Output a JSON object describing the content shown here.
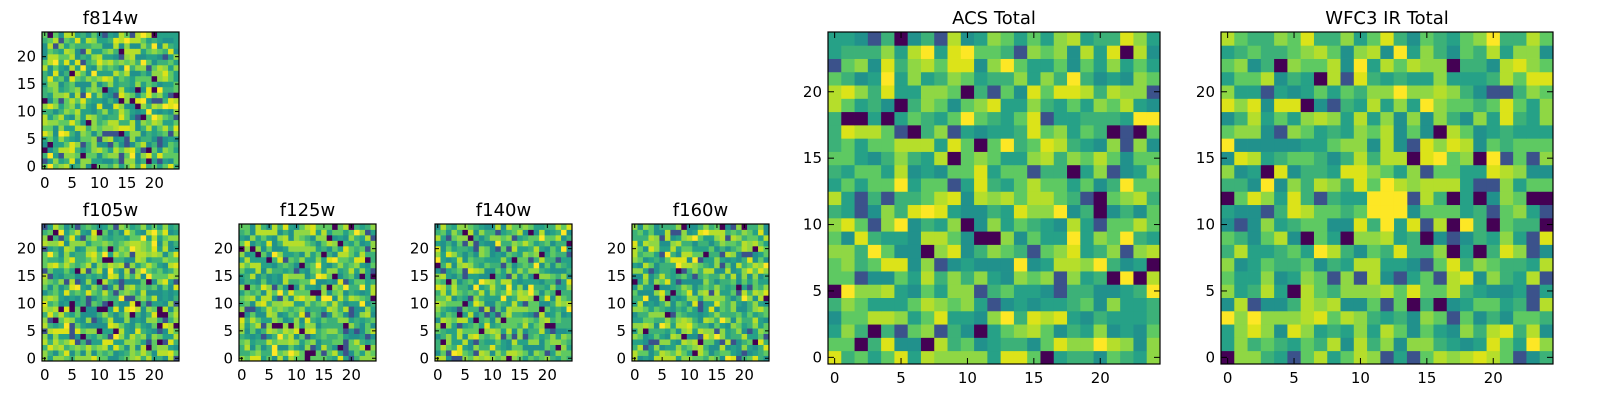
{
  "chart_data": [
    {
      "type": "heatmap",
      "title": "f814w",
      "size": 25,
      "colormap": "viridis",
      "xticks": [
        "0",
        "5",
        "10",
        "15",
        "20"
      ],
      "yticks": [
        "0",
        "5",
        "10",
        "15",
        "20"
      ]
    },
    {
      "type": "heatmap",
      "title": "f105w",
      "size": 25,
      "colormap": "viridis",
      "xticks": [
        "0",
        "5",
        "10",
        "15",
        "20"
      ],
      "yticks": [
        "0",
        "5",
        "10",
        "15",
        "20"
      ]
    },
    {
      "type": "heatmap",
      "title": "f125w",
      "size": 25,
      "colormap": "viridis",
      "xticks": [
        "0",
        "5",
        "10",
        "15",
        "20"
      ],
      "yticks": [
        "0",
        "5",
        "10",
        "15",
        "20"
      ]
    },
    {
      "type": "heatmap",
      "title": "f140w",
      "size": 25,
      "colormap": "viridis",
      "xticks": [
        "0",
        "5",
        "10",
        "15",
        "20"
      ],
      "yticks": [
        "0",
        "5",
        "10",
        "15",
        "20"
      ]
    },
    {
      "type": "heatmap",
      "title": "f160w",
      "size": 25,
      "colormap": "viridis",
      "xticks": [
        "0",
        "5",
        "10",
        "15",
        "20"
      ],
      "yticks": [
        "0",
        "5",
        "10",
        "15",
        "20"
      ]
    },
    {
      "type": "heatmap",
      "title": "ACS Total",
      "size": 25,
      "colormap": "viridis",
      "xticks": [
        "0",
        "5",
        "10",
        "15",
        "20"
      ],
      "yticks": [
        "0",
        "5",
        "10",
        "15",
        "20"
      ]
    },
    {
      "type": "heatmap",
      "title": "WFC3 IR Total",
      "size": 25,
      "colormap": "viridis",
      "xticks": [
        "0",
        "5",
        "10",
        "15",
        "20"
      ],
      "yticks": [
        "0",
        "5",
        "10",
        "15",
        "20"
      ]
    }
  ]
}
